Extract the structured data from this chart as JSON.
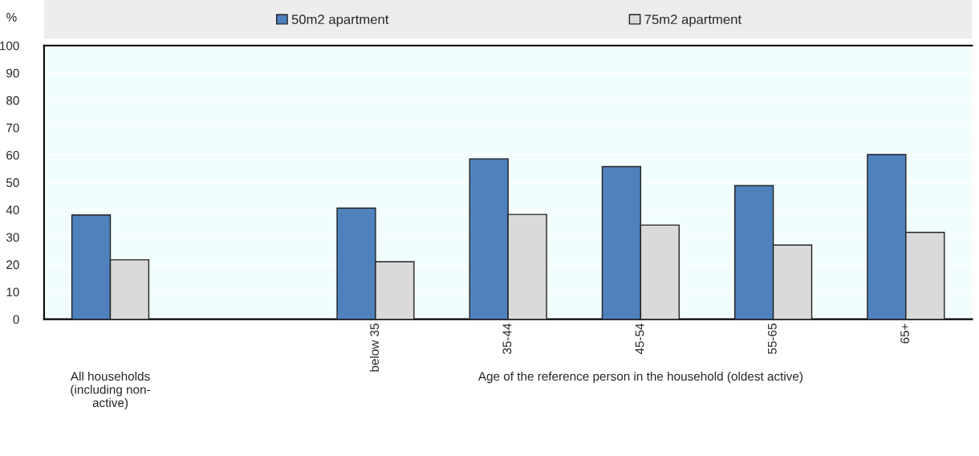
{
  "chart_data": {
    "type": "bar",
    "ylabel": "%",
    "categories": [
      null,
      null,
      "below 35",
      "35-44",
      "45-54",
      "55-65",
      "65+"
    ],
    "series": [
      {
        "name": "50m2 apartment",
        "color": "#4f81bd",
        "values": [
          38.1,
          null,
          40.6,
          58.6,
          55.8,
          48.8,
          60.2
        ]
      },
      {
        "name": "75m2 apartment",
        "color": "#dadada",
        "values": [
          21.7,
          null,
          21.0,
          38.3,
          34.4,
          27.1,
          31.7
        ]
      }
    ],
    "ylim": [
      0,
      100
    ],
    "yticks": [
      0,
      10,
      20,
      30,
      40,
      50,
      60,
      70,
      80,
      90,
      100
    ],
    "grid": "y",
    "legend": "top",
    "annotations": [
      "All households\n(including non-\nactive)",
      "Age of the reference person in the household (oldest active)"
    ]
  }
}
